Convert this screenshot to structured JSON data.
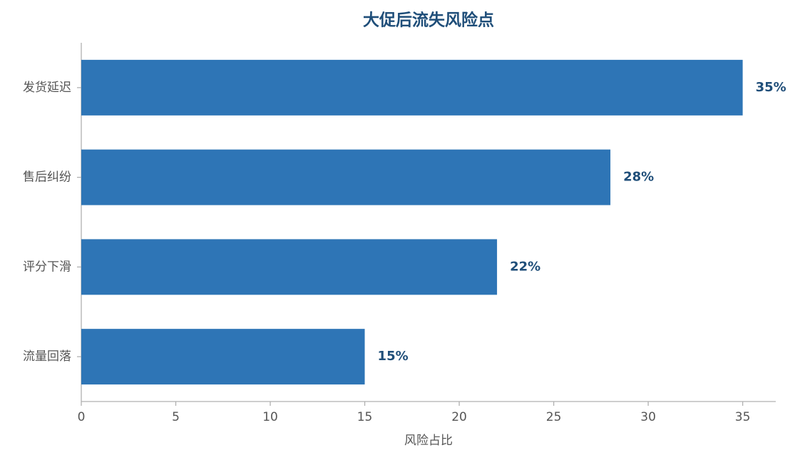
{
  "chart_data": {
    "type": "bar",
    "orientation": "horizontal",
    "title": "大促后流失风险点",
    "x_label": "风险占比",
    "categories": [
      "发货延迟",
      "售后纠纷",
      "评分下滑",
      "流量回落"
    ],
    "values": [
      35,
      28,
      22,
      15
    ],
    "value_labels": [
      "35%",
      "28%",
      "22%",
      "15%"
    ],
    "color": "#2e75b6",
    "label_color": "#1f4e79",
    "xlim": [
      0,
      36.75
    ],
    "xticks": [
      0,
      5,
      10,
      15,
      20,
      25,
      30,
      35
    ]
  }
}
